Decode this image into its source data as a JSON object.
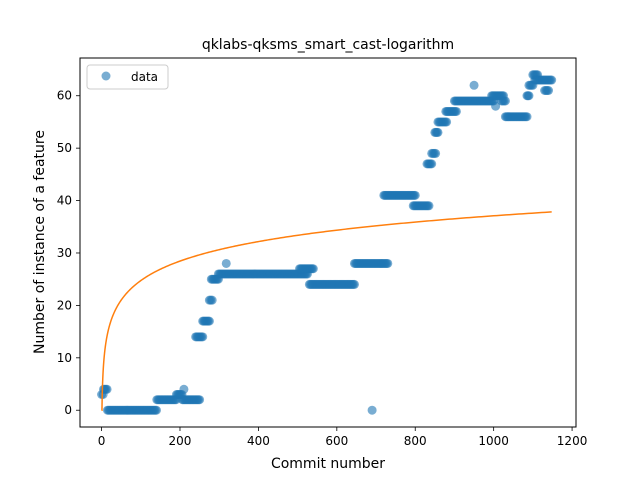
{
  "chart_data": {
    "type": "scatter",
    "title": "qklabs-qksms_smart_cast-logarithm",
    "xlabel": "Commit number",
    "ylabel": "Number of instance of a feature",
    "xlim": [
      -55,
      1210
    ],
    "ylim": [
      -3.2,
      67.2
    ],
    "xticks": [
      0,
      200,
      400,
      600,
      800,
      1000,
      1200
    ],
    "yticks": [
      0,
      10,
      20,
      30,
      40,
      50,
      60
    ],
    "legend": {
      "position": "top-left",
      "entries": [
        "data"
      ]
    },
    "colors": {
      "data": "#1f77b4",
      "fit": "#ff7f0e"
    },
    "data_segments": [
      {
        "from": 0,
        "to": 4,
        "value": 3
      },
      {
        "from": 5,
        "to": 14,
        "value": 4
      },
      {
        "from": 15,
        "to": 140,
        "value": 0
      },
      {
        "from": 141,
        "to": 190,
        "value": 2
      },
      {
        "from": 191,
        "to": 205,
        "value": 3
      },
      {
        "from": 206,
        "to": 250,
        "value": 2
      },
      {
        "from": 240,
        "to": 258,
        "value": 14
      },
      {
        "from": 258,
        "to": 275,
        "value": 17
      },
      {
        "from": 275,
        "to": 282,
        "value": 21
      },
      {
        "from": 280,
        "to": 298,
        "value": 25
      },
      {
        "from": 298,
        "to": 525,
        "value": 26
      },
      {
        "from": 505,
        "to": 540,
        "value": 27
      },
      {
        "from": 530,
        "to": 645,
        "value": 24
      },
      {
        "from": 645,
        "to": 730,
        "value": 28
      },
      {
        "from": 720,
        "to": 800,
        "value": 41
      },
      {
        "from": 795,
        "to": 835,
        "value": 39
      },
      {
        "from": 830,
        "to": 842,
        "value": 47
      },
      {
        "from": 842,
        "to": 852,
        "value": 49
      },
      {
        "from": 850,
        "to": 858,
        "value": 53
      },
      {
        "from": 858,
        "to": 880,
        "value": 55
      },
      {
        "from": 878,
        "to": 905,
        "value": 57
      },
      {
        "from": 900,
        "to": 1000,
        "value": 59
      },
      {
        "from": 995,
        "to": 1025,
        "value": 60
      },
      {
        "from": 1020,
        "to": 1030,
        "value": 59
      },
      {
        "from": 1030,
        "to": 1085,
        "value": 56
      },
      {
        "from": 1085,
        "to": 1090,
        "value": 60
      },
      {
        "from": 1090,
        "to": 1100,
        "value": 62
      },
      {
        "from": 1100,
        "to": 1112,
        "value": 64
      },
      {
        "from": 1105,
        "to": 1148,
        "value": 63
      },
      {
        "from": 1130,
        "to": 1140,
        "value": 61
      }
    ],
    "data_points": [
      {
        "x": 210,
        "y": 4
      },
      {
        "x": 318,
        "y": 28
      },
      {
        "x": 690,
        "y": 0
      },
      {
        "x": 950,
        "y": 62
      },
      {
        "x": 1005,
        "y": 58
      }
    ],
    "fit_curve": {
      "a": 0,
      "b": 5.37,
      "x_start": 0,
      "x_end": 1148
    }
  }
}
